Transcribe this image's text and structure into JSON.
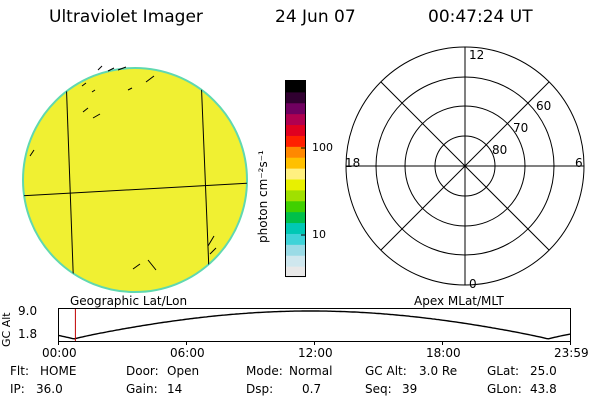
{
  "header": {
    "title": "Ultraviolet Imager",
    "date": "24 Jun 07",
    "time": "00:47:24 UT"
  },
  "colorbar": {
    "unit_label": "photon cm⁻²s⁻¹",
    "tick_100": "100",
    "tick_10": "10",
    "colors": [
      "#e8e8e8",
      "#cfe7ee",
      "#9adbe6",
      "#3fd3d8",
      "#00c8b4",
      "#00c04a",
      "#40d000",
      "#a0e000",
      "#e8f000",
      "#fff080",
      "#ffc000",
      "#ff8800",
      "#ff2000",
      "#e00020",
      "#b00050",
      "#700060",
      "#300030",
      "#000000"
    ]
  },
  "polar_plot": {
    "label_top": "12",
    "label_bottom": "0",
    "label_left": "18",
    "label_right": "6",
    "lat_60": "60",
    "lat_70": "70",
    "lat_80": "80"
  },
  "globe": {
    "fill_color": "#f0f032"
  },
  "timeline": {
    "left_label": "Geographic Lat/Lon",
    "right_label": "Apex MLat/MLT",
    "y_axis_label": "GC Alt",
    "y_top": "9.0",
    "y_bottom": "1.8",
    "ticks": [
      "00:00",
      "06:00",
      "12:00",
      "18:00",
      "23:59"
    ],
    "cursor_fraction": 0.033
  },
  "info": {
    "flt_label": "Flt:",
    "flt_value": "HOME",
    "ip_label": "IP:",
    "ip_value": "36.0",
    "door_label": "Door:",
    "door_value": "Open",
    "gain_label": "Gain:",
    "gain_value": "14",
    "mode_label": "Mode:",
    "mode_value": "Normal",
    "dsp_label": "Dsp:",
    "dsp_value": "0.7",
    "gcalt_label": "GC Alt:",
    "gcalt_value": "3.0 Re",
    "seq_label": "Seq:",
    "seq_value": "39",
    "glat_label": "GLat:",
    "glat_value": "25.0",
    "glon_label": "GLon:",
    "glon_value": "43.8"
  }
}
